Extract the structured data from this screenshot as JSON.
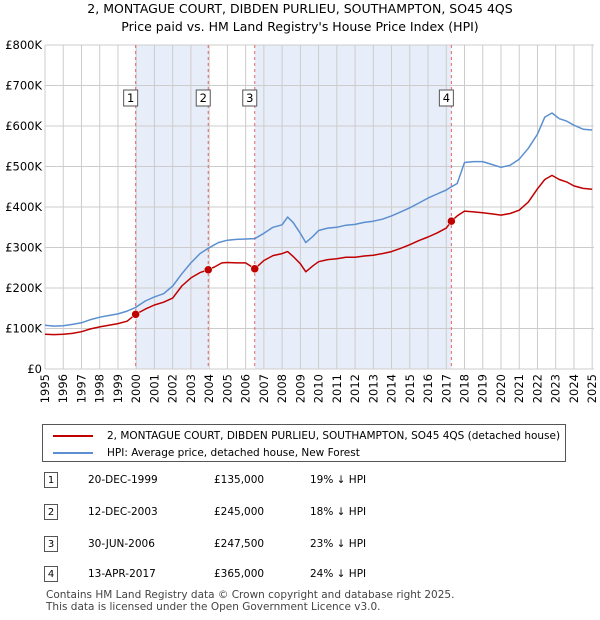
{
  "title_line1": "2, MONTAGUE COURT, DIBDEN PURLIEU, SOUTHAMPTON, SO45 4QS",
  "title_line2": "Price paid vs. HM Land Registry's House Price Index (HPI)",
  "colors": {
    "property": "#c00000",
    "hpi": "#5b8fd0",
    "shade": "#e8eef9",
    "vline": "#e06666",
    "grid": "#cccccc"
  },
  "chart_data": {
    "type": "line",
    "title": "2, MONTAGUE COURT, DIBDEN PURLIEU, SOUTHAMPTON, SO45 4QS — Price paid vs. HM Land Registry's House Price Index (HPI)",
    "xlim": [
      1995,
      2025.1
    ],
    "ylim": [
      0,
      800000
    ],
    "x_ticks": [
      1995,
      1996,
      1997,
      1998,
      1999,
      2000,
      2001,
      2002,
      2003,
      2004,
      2005,
      2006,
      2007,
      2008,
      2009,
      2010,
      2011,
      2012,
      2013,
      2014,
      2015,
      2016,
      2017,
      2018,
      2019,
      2020,
      2021,
      2022,
      2023,
      2024,
      2025
    ],
    "y_ticks": [
      {
        "value": 0,
        "label": "£0"
      },
      {
        "value": 100000,
        "label": "£100K"
      },
      {
        "value": 200000,
        "label": "£200K"
      },
      {
        "value": 300000,
        "label": "£300K"
      },
      {
        "value": 400000,
        "label": "£400K"
      },
      {
        "value": 500000,
        "label": "£500K"
      },
      {
        "value": 600000,
        "label": "£600K"
      },
      {
        "value": 700000,
        "label": "£700K"
      },
      {
        "value": 800000,
        "label": "£800K"
      }
    ],
    "shaded_ranges": [
      [
        1999.97,
        2003.95
      ],
      [
        2006.5,
        2017.28
      ]
    ],
    "series": [
      {
        "name": "HPI: Average price, detached house, New Forest",
        "color": "#5b8fd0",
        "points": [
          [
            1995.0,
            108000
          ],
          [
            1995.5,
            106000
          ],
          [
            1996.0,
            107000
          ],
          [
            1996.5,
            110000
          ],
          [
            1997.0,
            114000
          ],
          [
            1997.5,
            122000
          ],
          [
            1998.0,
            128000
          ],
          [
            1998.5,
            132000
          ],
          [
            1999.0,
            136000
          ],
          [
            1999.5,
            143000
          ],
          [
            1999.97,
            152000
          ],
          [
            2000.5,
            168000
          ],
          [
            2001.0,
            178000
          ],
          [
            2001.5,
            186000
          ],
          [
            2002.0,
            205000
          ],
          [
            2002.5,
            235000
          ],
          [
            2003.0,
            262000
          ],
          [
            2003.5,
            285000
          ],
          [
            2003.95,
            298000
          ],
          [
            2004.5,
            312000
          ],
          [
            2005.0,
            318000
          ],
          [
            2005.5,
            320000
          ],
          [
            2006.0,
            321000
          ],
          [
            2006.5,
            322000
          ],
          [
            2007.0,
            335000
          ],
          [
            2007.5,
            350000
          ],
          [
            2008.0,
            356000
          ],
          [
            2008.3,
            375000
          ],
          [
            2008.6,
            362000
          ],
          [
            2009.0,
            335000
          ],
          [
            2009.3,
            312000
          ],
          [
            2009.7,
            328000
          ],
          [
            2010.0,
            342000
          ],
          [
            2010.5,
            348000
          ],
          [
            2011.0,
            350000
          ],
          [
            2011.5,
            355000
          ],
          [
            2012.0,
            357000
          ],
          [
            2012.5,
            362000
          ],
          [
            2013.0,
            365000
          ],
          [
            2013.5,
            370000
          ],
          [
            2014.0,
            378000
          ],
          [
            2014.5,
            388000
          ],
          [
            2015.0,
            398000
          ],
          [
            2015.5,
            410000
          ],
          [
            2016.0,
            422000
          ],
          [
            2016.5,
            432000
          ],
          [
            2017.0,
            442000
          ],
          [
            2017.28,
            450000
          ],
          [
            2017.6,
            458000
          ],
          [
            2018.0,
            510000
          ],
          [
            2018.5,
            512000
          ],
          [
            2019.0,
            512000
          ],
          [
            2019.5,
            505000
          ],
          [
            2020.0,
            498000
          ],
          [
            2020.5,
            503000
          ],
          [
            2021.0,
            518000
          ],
          [
            2021.5,
            545000
          ],
          [
            2022.0,
            580000
          ],
          [
            2022.4,
            622000
          ],
          [
            2022.8,
            632000
          ],
          [
            2023.2,
            618000
          ],
          [
            2023.6,
            612000
          ],
          [
            2024.0,
            602000
          ],
          [
            2024.5,
            592000
          ],
          [
            2025.0,
            590000
          ]
        ]
      },
      {
        "name": "2, MONTAGUE COURT, DIBDEN PURLIEU, SOUTHAMPTON, SO45 4QS (detached house)",
        "color": "#c00000",
        "points": [
          [
            1995.0,
            86000
          ],
          [
            1995.5,
            85000
          ],
          [
            1996.0,
            86000
          ],
          [
            1996.5,
            88000
          ],
          [
            1997.0,
            92000
          ],
          [
            1997.5,
            99000
          ],
          [
            1998.0,
            104000
          ],
          [
            1998.5,
            108000
          ],
          [
            1999.0,
            112000
          ],
          [
            1999.5,
            118000
          ],
          [
            1999.97,
            135000
          ],
          [
            2000.5,
            148000
          ],
          [
            2001.0,
            158000
          ],
          [
            2001.5,
            165000
          ],
          [
            2002.0,
            175000
          ],
          [
            2002.5,
            205000
          ],
          [
            2003.0,
            225000
          ],
          [
            2003.5,
            238000
          ],
          [
            2003.95,
            245000
          ],
          [
            2004.3,
            252000
          ],
          [
            2004.7,
            262000
          ],
          [
            2005.0,
            263000
          ],
          [
            2005.5,
            262000
          ],
          [
            2006.0,
            262000
          ],
          [
            2006.5,
            247500
          ],
          [
            2007.0,
            268000
          ],
          [
            2007.5,
            280000
          ],
          [
            2008.0,
            285000
          ],
          [
            2008.3,
            290000
          ],
          [
            2008.6,
            278000
          ],
          [
            2009.0,
            260000
          ],
          [
            2009.3,
            240000
          ],
          [
            2009.7,
            255000
          ],
          [
            2010.0,
            265000
          ],
          [
            2010.5,
            270000
          ],
          [
            2011.0,
            272000
          ],
          [
            2011.5,
            276000
          ],
          [
            2012.0,
            276000
          ],
          [
            2012.5,
            279000
          ],
          [
            2013.0,
            281000
          ],
          [
            2013.5,
            285000
          ],
          [
            2014.0,
            290000
          ],
          [
            2014.5,
            298000
          ],
          [
            2015.0,
            307000
          ],
          [
            2015.5,
            317000
          ],
          [
            2016.0,
            326000
          ],
          [
            2016.5,
            336000
          ],
          [
            2017.0,
            348000
          ],
          [
            2017.28,
            365000
          ],
          [
            2017.6,
            378000
          ],
          [
            2018.0,
            390000
          ],
          [
            2018.5,
            388000
          ],
          [
            2019.0,
            386000
          ],
          [
            2019.5,
            383000
          ],
          [
            2020.0,
            380000
          ],
          [
            2020.5,
            384000
          ],
          [
            2021.0,
            392000
          ],
          [
            2021.5,
            412000
          ],
          [
            2022.0,
            445000
          ],
          [
            2022.4,
            468000
          ],
          [
            2022.8,
            478000
          ],
          [
            2023.2,
            468000
          ],
          [
            2023.6,
            462000
          ],
          [
            2024.0,
            452000
          ],
          [
            2024.5,
            446000
          ],
          [
            2025.0,
            444000
          ]
        ]
      }
    ],
    "transactions": [
      {
        "num": "1",
        "x": 1999.97,
        "price": 135000
      },
      {
        "num": "2",
        "x": 2003.95,
        "price": 245000
      },
      {
        "num": "3",
        "x": 2006.5,
        "price": 247500
      },
      {
        "num": "4",
        "x": 2017.28,
        "price": 365000
      }
    ]
  },
  "legend": {
    "property_label": "2, MONTAGUE COURT, DIBDEN PURLIEU, SOUTHAMPTON, SO45 4QS (detached house)",
    "hpi_label": "HPI: Average price, detached house, New Forest"
  },
  "table": [
    {
      "num": "1",
      "date": "20-DEC-1999",
      "price": "£135,000",
      "hpi": "19% ↓ HPI"
    },
    {
      "num": "2",
      "date": "12-DEC-2003",
      "price": "£245,000",
      "hpi": "18% ↓ HPI"
    },
    {
      "num": "3",
      "date": "30-JUN-2006",
      "price": "£247,500",
      "hpi": "23% ↓ HPI"
    },
    {
      "num": "4",
      "date": "13-APR-2017",
      "price": "£365,000",
      "hpi": "24% ↓ HPI"
    }
  ],
  "footer": {
    "line1": "Contains HM Land Registry data © Crown copyright and database right 2025.",
    "line2": "This data is licensed under the Open Government Licence v3.0."
  }
}
